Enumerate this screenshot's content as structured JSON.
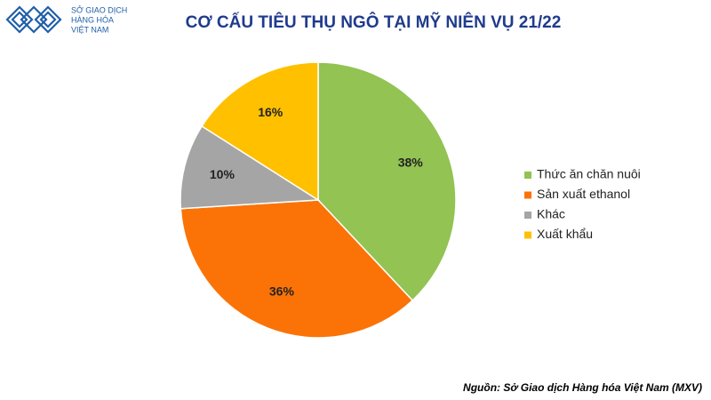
{
  "logo": {
    "lines": [
      "SỞ GIAO DỊCH",
      "HÀNG HÓA",
      "VIỆT NAM"
    ]
  },
  "chart_data": {
    "type": "pie",
    "title": "CƠ CẤU TIÊU THỤ NGÔ TẠI MỸ NIÊN VỤ 21/22",
    "categories": [
      "Thức ăn chăn nuôi",
      "Sản xuất ethanol",
      "Khác",
      "Xuất khẩu"
    ],
    "values": [
      38,
      36,
      10,
      16
    ],
    "value_labels": [
      "38%",
      "36%",
      "10%",
      "16%"
    ],
    "colors": [
      "#92c353",
      "#fb7306",
      "#a5a5a5",
      "#ffc000"
    ],
    "legend": "right",
    "source": "Nguồn: Sở Giao dịch Hàng hóa Việt Nam (MXV)"
  }
}
